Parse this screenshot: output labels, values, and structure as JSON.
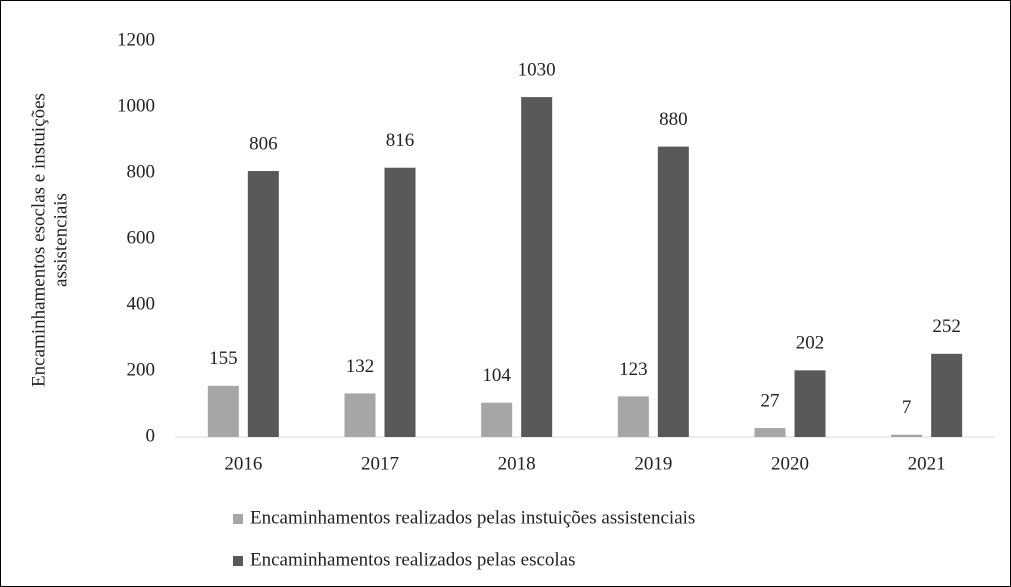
{
  "chart_data": {
    "type": "bar",
    "ylabel": [
      "Encaminhamentos esoclas e instuições",
      "assistenciais"
    ],
    "categories": [
      "2016",
      "2017",
      "2018",
      "2019",
      "2020",
      "2021"
    ],
    "series": [
      {
        "name": "Encaminhamentos realizados pelas instuições assistenciais",
        "color": "#a6a6a6",
        "values": [
          155,
          132,
          104,
          123,
          27,
          7
        ]
      },
      {
        "name": "Encaminhamentos realizados pelas escolas",
        "color": "#595959",
        "values": [
          806,
          816,
          1030,
          880,
          202,
          252
        ]
      }
    ],
    "ylim": [
      0,
      1200
    ],
    "yticks": [
      0,
      200,
      400,
      600,
      800,
      1000,
      1200
    ],
    "grid": false,
    "legend": "bottom"
  }
}
